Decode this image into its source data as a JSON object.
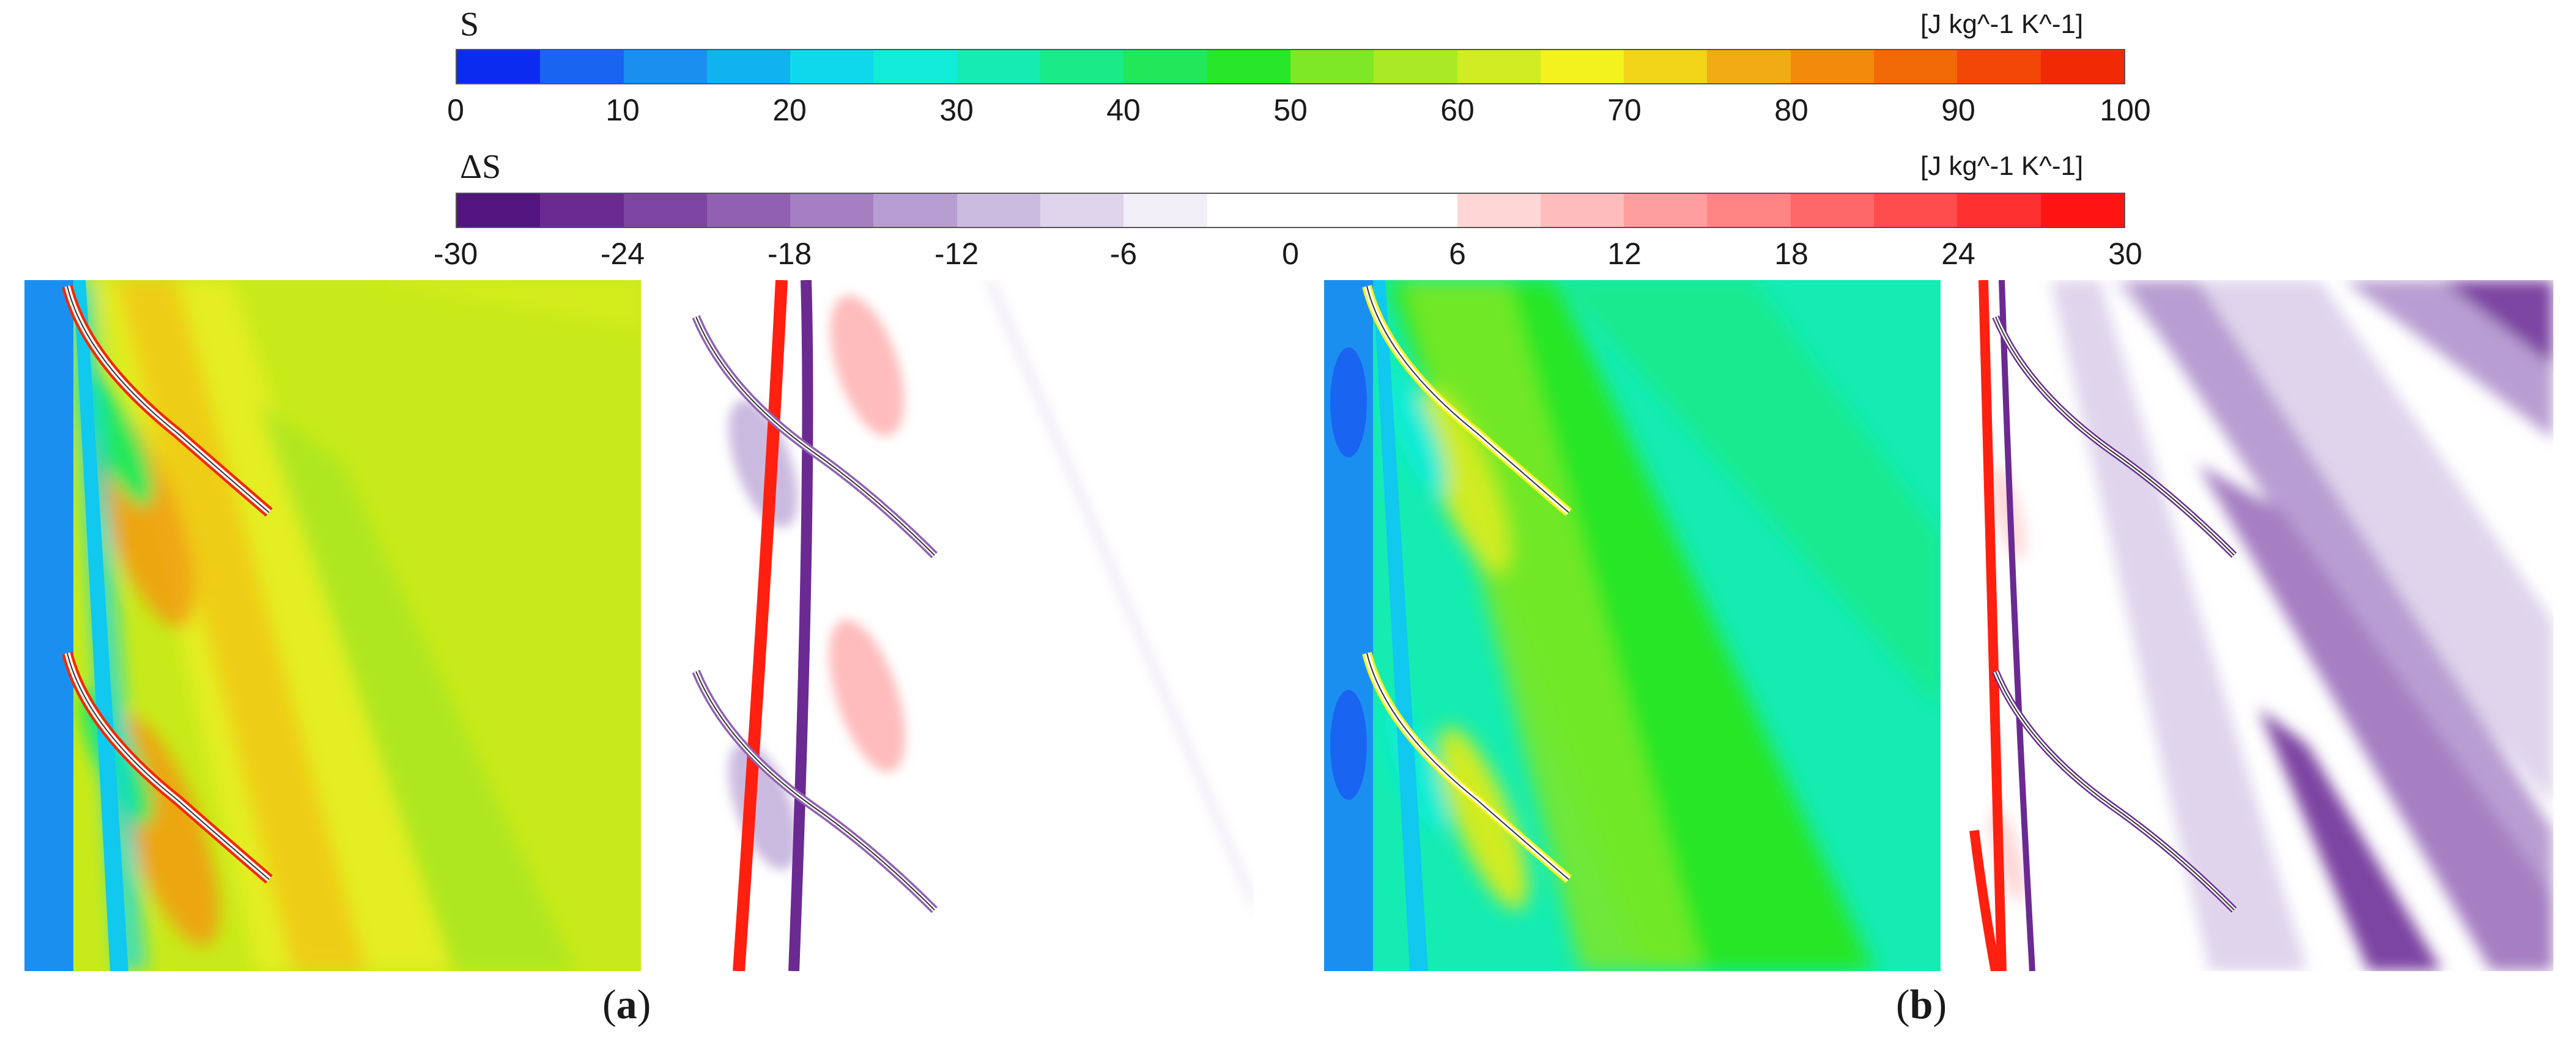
{
  "colorbar_s": {
    "title": "S",
    "unit": "[J kg^-1 K^-1]",
    "ticks": [
      "0",
      "10",
      "20",
      "30",
      "40",
      "50",
      "60",
      "70",
      "80",
      "90",
      "100"
    ],
    "colors": [
      "#0b2cf0",
      "#1a64f2",
      "#1b8ff0",
      "#11b3ee",
      "#0fd8ec",
      "#10ecd8",
      "#14ecb2",
      "#1aea88",
      "#20e858",
      "#28e628",
      "#7ee826",
      "#aaea24",
      "#d0ec22",
      "#f4f21e",
      "#f2d418",
      "#f0ac12",
      "#f28a0c",
      "#f26a08",
      "#f24606",
      "#f02a05"
    ]
  },
  "colorbar_ds": {
    "title": "ΔS",
    "unit": "[J kg^-1 K^-1]",
    "ticks": [
      "-30",
      "-24",
      "-18",
      "-12",
      "-6",
      "0",
      "6",
      "12",
      "18",
      "24",
      "30"
    ],
    "colors": [
      "#52147e",
      "#6a2a92",
      "#7d44a2",
      "#9160b2",
      "#a57fc2",
      "#b89dd2",
      "#cbbadf",
      "#dfd4ec",
      "#f2eef7",
      "#ffffff",
      "#ffffff",
      "#ffffff",
      "#ffd6d6",
      "#ffbcbc",
      "#ff9e9e",
      "#ff8484",
      "#ff6868",
      "#ff4c4c",
      "#ff3030",
      "#ff1414"
    ]
  },
  "captions": {
    "a_open": "(",
    "a_letter": "a",
    "a_close": ")",
    "b_open": "(",
    "b_letter": "b",
    "b_close": ")"
  }
}
